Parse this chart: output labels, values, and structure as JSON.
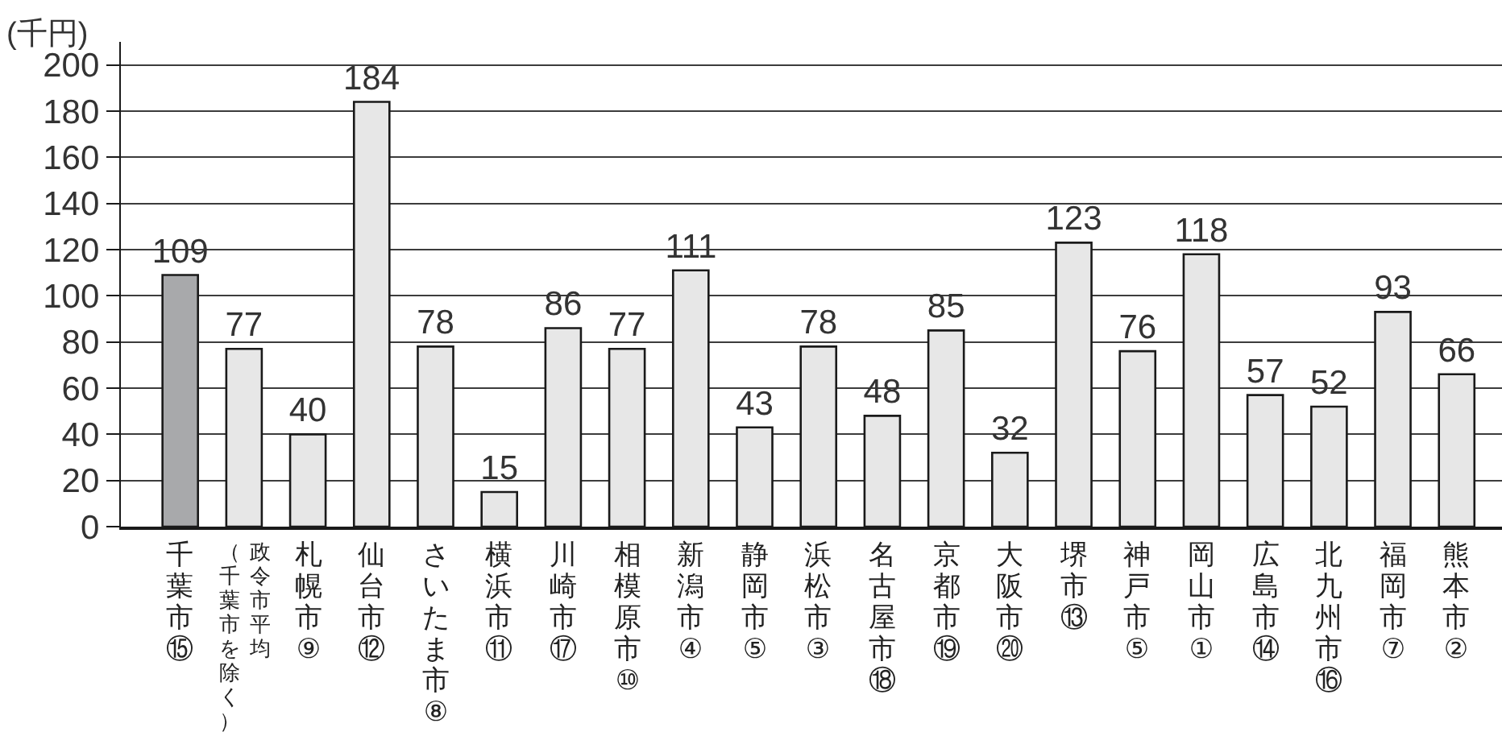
{
  "chart_data": {
    "type": "bar",
    "ylabel": "(千円)",
    "categories": [
      "千葉市⑮",
      "政令市平均（千葉市を除く）",
      "札幌市⑨",
      "仙台市⑫",
      "さいたま市⑧",
      "横浜市⑪",
      "川崎市⑰",
      "相模原市⑩",
      "新潟市④",
      "静岡市⑤",
      "浜松市③",
      "名古屋市⑱",
      "京都市⑲",
      "大阪市⑳",
      "堺市⑬",
      "神戸市⑤",
      "岡山市①",
      "広島市⑭",
      "北九州市⑯",
      "福岡市⑦",
      "熊本市②"
    ],
    "values": [
      109,
      77,
      40,
      184,
      78,
      15,
      86,
      77,
      111,
      43,
      78,
      48,
      85,
      32,
      123,
      76,
      118,
      57,
      52,
      93,
      66
    ],
    "colors": [
      "#a8a9ab",
      "#e7e7e7",
      "#e7e7e7",
      "#e7e7e7",
      "#e7e7e7",
      "#e7e7e7",
      "#e7e7e7",
      "#e7e7e7",
      "#e7e7e7",
      "#e7e7e7",
      "#e7e7e7",
      "#e7e7e7",
      "#e7e7e7",
      "#e7e7e7",
      "#e7e7e7",
      "#e7e7e7",
      "#e7e7e7",
      "#e7e7e7",
      "#e7e7e7",
      "#e7e7e7",
      "#e7e7e7"
    ],
    "ylim": [
      0,
      210
    ],
    "yticks": [
      0,
      20,
      40,
      60,
      80,
      100,
      120,
      140,
      160,
      180,
      200
    ],
    "grid": "y",
    "data_labels": true
  }
}
